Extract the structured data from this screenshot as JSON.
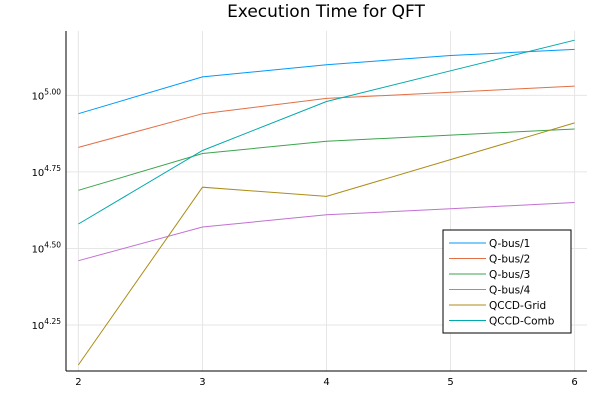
{
  "chart_data": {
    "type": "line",
    "title": "Execution Time for QFT",
    "xlabel": "",
    "ylabel": "",
    "x": [
      2,
      3,
      4,
      5,
      6
    ],
    "xlim": [
      1.9,
      6.1
    ],
    "x_ticks": [
      2,
      3,
      4,
      5,
      6
    ],
    "y_scale": "log10",
    "ylim_log10": [
      4.1,
      5.21
    ],
    "y_ticks_log10": [
      4.25,
      4.5,
      4.75,
      5.0
    ],
    "y_tick_labels": [
      {
        "base": "10",
        "exp": "4.25"
      },
      {
        "base": "10",
        "exp": "4.50"
      },
      {
        "base": "10",
        "exp": "4.75"
      },
      {
        "base": "10",
        "exp": "5.00"
      }
    ],
    "grid": true,
    "legend_position": "bottom-right",
    "series": [
      {
        "name": "Q-bus/1",
        "color": "#009AFA",
        "log10_values": [
          4.94,
          5.06,
          5.1,
          5.13,
          5.15
        ]
      },
      {
        "name": "Q-bus/2",
        "color": "#E26F46",
        "log10_values": [
          4.83,
          4.94,
          4.99,
          5.01,
          5.03
        ]
      },
      {
        "name": "Q-bus/3",
        "color": "#3DA44D",
        "log10_values": [
          4.69,
          4.81,
          4.85,
          4.87,
          4.89
        ]
      },
      {
        "name": "Q-bus/4",
        "color": "#C271D2",
        "log10_values": [
          4.46,
          4.57,
          4.61,
          4.63,
          4.65
        ]
      },
      {
        "name": "QCCD-Grid",
        "color": "#AC8D18",
        "log10_values": [
          4.12,
          4.7,
          4.67,
          4.79,
          4.91
        ]
      },
      {
        "name": "QCCD-Comb",
        "color": "#00A9AD",
        "log10_values": [
          4.58,
          4.82,
          4.98,
          5.08,
          5.18
        ]
      }
    ]
  }
}
